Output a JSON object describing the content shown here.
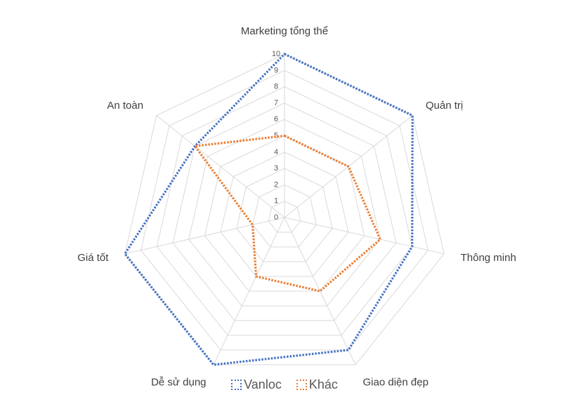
{
  "chart_data": {
    "type": "radar",
    "categories": [
      "Marketing tổng thể",
      "Quản trị",
      "Thông minh",
      "Giao diện đẹp",
      "Dễ sử dụng",
      "Giá tốt",
      "An toàn"
    ],
    "rlim": [
      0,
      10
    ],
    "ticks": [
      "0",
      "1",
      "2",
      "3",
      "4",
      "5",
      "6",
      "7",
      "8",
      "9",
      "10"
    ],
    "grid": true,
    "legend_position": "bottom",
    "series": [
      {
        "name": "Vanloc",
        "color": "#4472C4",
        "values": [
          10,
          10,
          8,
          9,
          10,
          10,
          7
        ]
      },
      {
        "name": "Khác",
        "color": "#ED7D31",
        "values": [
          5,
          5,
          6,
          5,
          4,
          2,
          7
        ]
      }
    ]
  }
}
